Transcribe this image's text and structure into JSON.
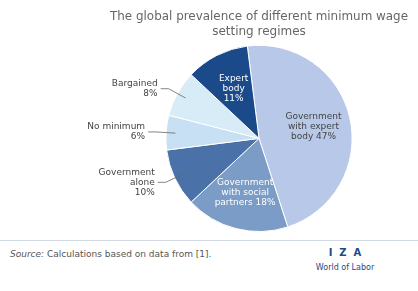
{
  "chart_data": {
    "type": "pie",
    "title": "The global prevalence of different minimum wage\nsetting regimes",
    "categories": [
      "Government\nwith expert\nbody 47%",
      "Government\nwith social\npartners 18%",
      "Government\nalone\n10%",
      "No minimum\n6%",
      "Bargained\n8%",
      "Expert\nbody\n11%"
    ],
    "values": [
      47,
      18,
      10,
      6,
      8,
      11
    ],
    "colors": [
      "#b8c8e8",
      "#7a9cc6",
      "#4a72a8",
      "#c8e0f4",
      "#d8ecf8",
      "#1a4a8a"
    ],
    "annotations": [
      "Source: Calculations based on data from [1].",
      "I  Z  A",
      "World of Labor"
    ]
  }
}
